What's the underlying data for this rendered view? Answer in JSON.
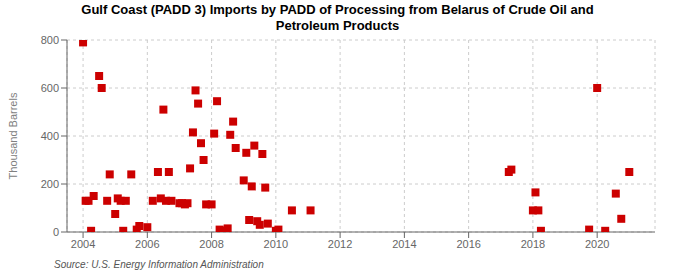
{
  "chart_data": {
    "type": "scatter",
    "title": "Gulf Coast (PADD 3) Imports by PADD of Processing from Belarus of Crude Oil and\nPetroleum Products",
    "ylabel": "Thousand Barrels",
    "source": "Source: U.S. Energy Information Administration",
    "color": "#cc0000",
    "marker": "square",
    "grid": true,
    "xlim": [
      2003.5,
      2021.8
    ],
    "ylim": [
      0,
      800
    ],
    "xticks": [
      2004,
      2006,
      2008,
      2010,
      2012,
      2014,
      2016,
      2018,
      2020
    ],
    "yticks": [
      0,
      200,
      400,
      600,
      800
    ],
    "x": [
      2004.0,
      2004.08,
      2004.17,
      2004.25,
      2004.33,
      2004.5,
      2004.58,
      2004.75,
      2004.83,
      2005.0,
      2005.08,
      2005.17,
      2005.25,
      2005.33,
      2005.5,
      2005.67,
      2005.75,
      2006.0,
      2006.17,
      2006.33,
      2006.42,
      2006.5,
      2006.58,
      2006.67,
      2006.75,
      2007.0,
      2007.08,
      2007.17,
      2007.25,
      2007.33,
      2007.42,
      2007.5,
      2007.58,
      2007.67,
      2007.75,
      2007.83,
      2008.0,
      2008.08,
      2008.17,
      2008.25,
      2008.33,
      2008.42,
      2008.5,
      2008.58,
      2008.67,
      2008.75,
      2009.0,
      2009.08,
      2009.17,
      2009.25,
      2009.33,
      2009.42,
      2009.5,
      2009.58,
      2009.67,
      2009.75,
      2010.0,
      2010.08,
      2010.5,
      2011.08,
      2017.25,
      2017.33,
      2018.0,
      2018.08,
      2018.17,
      2018.25,
      2019.75,
      2020.0,
      2020.25,
      2020.58,
      2020.75,
      2021.0
    ],
    "values": [
      790,
      130,
      130,
      5,
      150,
      650,
      600,
      130,
      240,
      75,
      140,
      130,
      5,
      130,
      240,
      10,
      25,
      20,
      130,
      250,
      140,
      510,
      130,
      250,
      130,
      120,
      120,
      115,
      120,
      265,
      415,
      590,
      535,
      370,
      300,
      115,
      115,
      410,
      545,
      10,
      5,
      5,
      15,
      405,
      460,
      350,
      215,
      330,
      50,
      190,
      360,
      45,
      30,
      325,
      185,
      35,
      5,
      10,
      90,
      90,
      250,
      260,
      90,
      165,
      90,
      5,
      10,
      600,
      5,
      160,
      55,
      250
    ]
  }
}
